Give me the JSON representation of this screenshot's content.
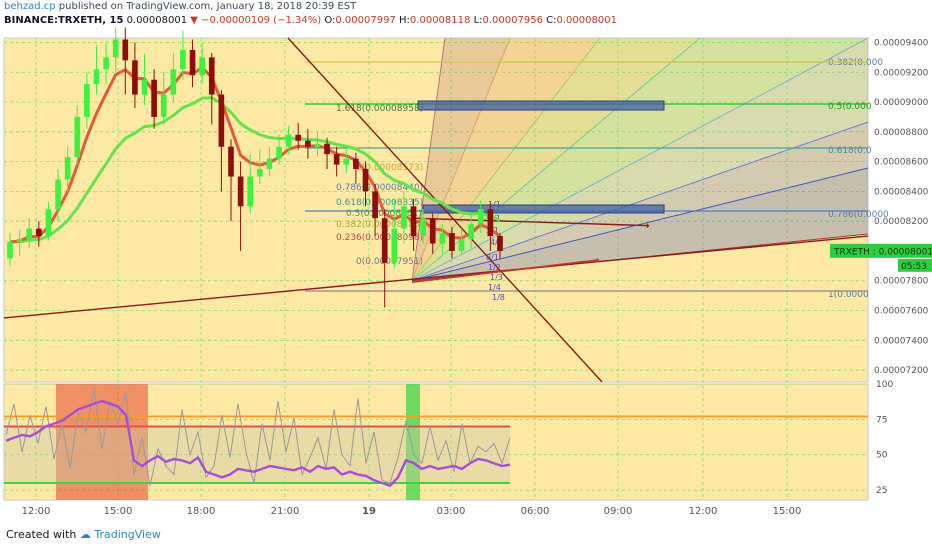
{
  "header": {
    "publisher": "behzad.cp",
    "published_text": "published on TradingView.com, January 18, 2018 20:39 EST",
    "symbol": "BINANCE:TRXETH, 15",
    "last": "0.00008001",
    "change": "−0.00000109 (−1.34%)",
    "o_label": "O:",
    "o": "0.00007997",
    "h_label": "H:",
    "h": "0.00008118",
    "l_label": "L:",
    "l": "0.00007956",
    "c_label": "C:",
    "c": "0.00008001"
  },
  "footer": {
    "created_with": "Created with",
    "brand": "TradingView"
  },
  "colors": {
    "background": "#fde8a4",
    "bull_candle": "#3df23d",
    "bear_candle": "#8b0f0f",
    "ema_long": "#66e34a",
    "ema_short": "#e55a3a",
    "last_price_label": "#2ecc40",
    "rsi_line": "#a64dd9",
    "stoch_line": "#9a9a9a",
    "grid": "#7bdc6a"
  },
  "chart_data": [
    {
      "type": "candlestick",
      "symbol": "TRXETH",
      "x_ticks": [
        "12:00",
        "15:00",
        "18:00",
        "21:00",
        "19",
        "03:00",
        "06:00",
        "09:00",
        "12:00",
        "15:00"
      ],
      "y_ticks": [
        "0.00009400",
        "0.00009200",
        "0.00009000",
        "0.00008800",
        "0.00008600",
        "0.00008400",
        "0.00008200",
        "0.00007800",
        "0.00007600",
        "0.00007400",
        "0.00007200"
      ],
      "ylim": [
        7.12e-05,
        9.43e-05
      ],
      "last_price_symbol": "TRXETH",
      "last_price_value": "0.00008001",
      "countdown": "05:53",
      "candles": [
        {
          "o": 7.95,
          "c": 8.06,
          "h": 8.12,
          "l": 7.9
        },
        {
          "o": 8.06,
          "c": 8.08,
          "h": 8.14,
          "l": 7.97
        },
        {
          "o": 8.08,
          "c": 8.15,
          "h": 8.22,
          "l": 8.02
        },
        {
          "o": 8.15,
          "c": 8.1,
          "h": 8.2,
          "l": 8.03
        },
        {
          "o": 8.1,
          "c": 8.28,
          "h": 8.33,
          "l": 8.07
        },
        {
          "o": 8.28,
          "c": 8.48,
          "h": 8.55,
          "l": 8.2
        },
        {
          "o": 8.48,
          "c": 8.63,
          "h": 8.7,
          "l": 8.4
        },
        {
          "o": 8.63,
          "c": 8.9,
          "h": 8.98,
          "l": 8.58
        },
        {
          "o": 8.9,
          "c": 9.12,
          "h": 9.2,
          "l": 8.82
        },
        {
          "o": 9.12,
          "c": 9.22,
          "h": 9.38,
          "l": 9.05
        },
        {
          "o": 9.22,
          "c": 9.3,
          "h": 9.4,
          "l": 9.12
        },
        {
          "o": 9.3,
          "c": 9.42,
          "h": 9.5,
          "l": 9.2
        },
        {
          "o": 9.42,
          "c": 9.28,
          "h": 9.5,
          "l": 9.05
        },
        {
          "o": 9.28,
          "c": 9.05,
          "h": 9.4,
          "l": 8.96
        },
        {
          "o": 9.05,
          "c": 9.15,
          "h": 9.32,
          "l": 8.98
        },
        {
          "o": 9.15,
          "c": 8.9,
          "h": 9.22,
          "l": 8.82
        },
        {
          "o": 8.9,
          "c": 9.05,
          "h": 9.2,
          "l": 8.85
        },
        {
          "o": 9.05,
          "c": 9.22,
          "h": 9.33,
          "l": 9.0
        },
        {
          "o": 9.22,
          "c": 9.35,
          "h": 9.48,
          "l": 9.15
        },
        {
          "o": 9.35,
          "c": 9.18,
          "h": 9.42,
          "l": 9.1
        },
        {
          "o": 9.18,
          "c": 9.3,
          "h": 9.4,
          "l": 9.12
        },
        {
          "o": 9.3,
          "c": 9.05,
          "h": 9.33,
          "l": 8.85
        },
        {
          "o": 9.05,
          "c": 8.7,
          "h": 9.08,
          "l": 8.4
        },
        {
          "o": 8.7,
          "c": 8.5,
          "h": 8.75,
          "l": 8.2
        },
        {
          "o": 8.5,
          "c": 8.3,
          "h": 8.6,
          "l": 8.0
        },
        {
          "o": 8.3,
          "c": 8.5,
          "h": 8.65,
          "l": 8.25
        },
        {
          "o": 8.5,
          "c": 8.55,
          "h": 8.68,
          "l": 8.45
        },
        {
          "o": 8.55,
          "c": 8.62,
          "h": 8.7,
          "l": 8.5
        },
        {
          "o": 8.62,
          "c": 8.7,
          "h": 8.78,
          "l": 8.58
        },
        {
          "o": 8.7,
          "c": 8.78,
          "h": 8.84,
          "l": 8.65
        },
        {
          "o": 8.78,
          "c": 8.74,
          "h": 8.86,
          "l": 8.68
        },
        {
          "o": 8.74,
          "c": 8.7,
          "h": 8.82,
          "l": 8.62
        },
        {
          "o": 8.7,
          "c": 8.72,
          "h": 8.8,
          "l": 8.64
        },
        {
          "o": 8.72,
          "c": 8.65,
          "h": 8.76,
          "l": 8.55
        },
        {
          "o": 8.65,
          "c": 8.58,
          "h": 8.7,
          "l": 8.5
        },
        {
          "o": 8.58,
          "c": 8.62,
          "h": 8.68,
          "l": 8.52
        },
        {
          "o": 8.62,
          "c": 8.55,
          "h": 8.66,
          "l": 8.45
        },
        {
          "o": 8.55,
          "c": 8.4,
          "h": 8.6,
          "l": 8.3
        },
        {
          "o": 8.4,
          "c": 8.22,
          "h": 8.45,
          "l": 8.1
        },
        {
          "o": 8.22,
          "c": 7.92,
          "h": 8.28,
          "l": 7.62
        },
        {
          "o": 7.92,
          "c": 8.15,
          "h": 8.35,
          "l": 7.88
        },
        {
          "o": 8.15,
          "c": 8.3,
          "h": 8.4,
          "l": 8.05
        },
        {
          "o": 8.3,
          "c": 8.1,
          "h": 8.35,
          "l": 8.0
        },
        {
          "o": 8.1,
          "c": 8.22,
          "h": 8.28,
          "l": 8.05
        },
        {
          "o": 8.22,
          "c": 8.05,
          "h": 8.25,
          "l": 7.98
        },
        {
          "o": 8.05,
          "c": 8.12,
          "h": 8.18,
          "l": 7.98
        },
        {
          "o": 8.12,
          "c": 8.0,
          "h": 8.16,
          "l": 7.95
        },
        {
          "o": 8.0,
          "c": 8.08,
          "h": 8.15,
          "l": 7.97
        },
        {
          "o": 8.08,
          "c": 8.18,
          "h": 8.25,
          "l": 8.02
        },
        {
          "o": 8.18,
          "c": 8.28,
          "h": 8.34,
          "l": 8.12
        },
        {
          "o": 8.28,
          "c": 8.1,
          "h": 8.32,
          "l": 8.0
        },
        {
          "o": 8.1,
          "c": 8.0,
          "h": 8.12,
          "l": 7.95
        }
      ],
      "fib_retracement": [
        {
          "level": "1.618",
          "price": "0.00008958"
        },
        {
          "level": "1",
          "price": "0.00008573"
        },
        {
          "level": "0.786",
          "price": "0.00008440"
        },
        {
          "level": "0.618",
          "price": "0.00008335"
        },
        {
          "level": "0.5",
          "price": "0.00008261"
        },
        {
          "level": "0.382",
          "price": "0.00008188"
        },
        {
          "level": "0.236",
          "price": "0.00008098"
        },
        {
          "level": "0",
          "price": "0.00007951"
        }
      ],
      "fib_fan_labels": [
        "0.382(0.000",
        "0.5(0.000",
        "0.618(0.0",
        "0.786(0.0000",
        "1(0.0000"
      ],
      "fan_ratio_labels": [
        "1/1",
        "2/1",
        "3/1",
        "4/1",
        "8/1",
        "1/2",
        "1/3",
        "1/4",
        "1/8"
      ]
    },
    {
      "type": "line",
      "name": "RSI / Stoch RSI",
      "y_ticks": [
        "100",
        "75",
        "50",
        "25"
      ],
      "ylim": [
        18,
        100
      ],
      "overbought": 70,
      "oversold": 30,
      "rsi": [
        60,
        62,
        64,
        63,
        66,
        70,
        72,
        74,
        78,
        82,
        84,
        86,
        88,
        86,
        84,
        78,
        46,
        42,
        46,
        49,
        45,
        47,
        46,
        44,
        48,
        38,
        36,
        34,
        36,
        40,
        39,
        38,
        40,
        42,
        41,
        40,
        39,
        41,
        38,
        42,
        40,
        41,
        36,
        38,
        36,
        35,
        32,
        30,
        28,
        34,
        46,
        44,
        40,
        42,
        40,
        41,
        42,
        40,
        44,
        47,
        46,
        44,
        42,
        43
      ],
      "stoch": [
        64,
        86,
        52,
        78,
        58,
        84,
        47,
        72,
        40,
        80,
        66,
        96,
        54,
        88,
        72,
        94,
        36,
        62,
        28,
        54,
        42,
        36,
        82,
        50,
        66,
        34,
        42,
        78,
        48,
        86,
        52,
        30,
        72,
        46,
        88,
        52,
        76,
        36,
        48,
        62,
        40,
        82,
        50,
        42,
        90,
        44,
        66,
        32,
        30,
        48,
        74,
        50,
        44,
        70,
        46,
        60,
        38,
        72,
        44,
        56,
        52,
        58,
        44,
        62
      ]
    }
  ]
}
